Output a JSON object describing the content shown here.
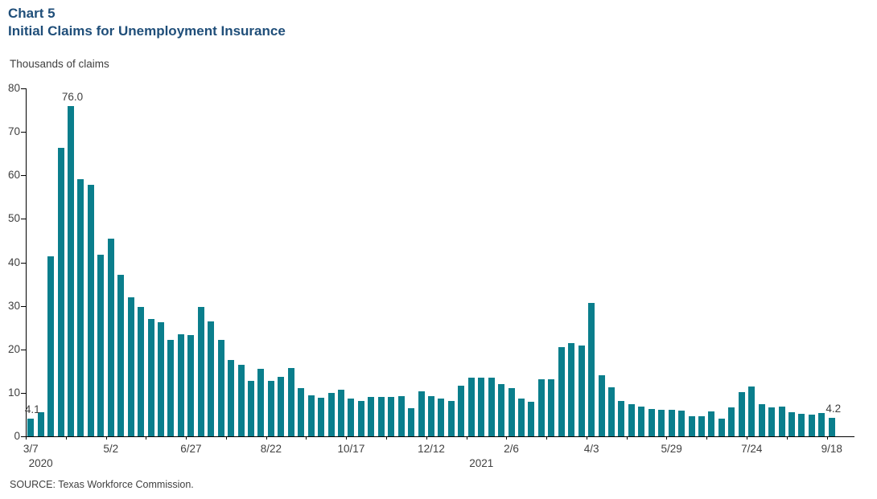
{
  "header": {
    "title_line1": "Chart 5",
    "title_line2": "Initial Claims for Unemployment Insurance"
  },
  "footer": {
    "source": "SOURCE: Texas Workforce Commission."
  },
  "chart_data": {
    "type": "bar",
    "title": "Chart 5",
    "subtitle": "Initial Claims for Unemployment Insurance",
    "ylabel": "Thousands of claims",
    "xlabel": "",
    "ylim": [
      0,
      80
    ],
    "y_ticks": [
      0,
      10,
      20,
      30,
      40,
      50,
      60,
      70,
      80
    ],
    "grid": false,
    "legend_position": "none",
    "bar_color": "#0A7E8C",
    "title_color": "#1F4E79",
    "text_color": "#404040",
    "axis_color": "#000000",
    "categories": [
      "3/7/2020",
      "3/14/2020",
      "3/21/2020",
      "3/28/2020",
      "4/4/2020",
      "4/11/2020",
      "4/18/2020",
      "4/25/2020",
      "5/2/2020",
      "5/9/2020",
      "5/16/2020",
      "5/23/2020",
      "5/30/2020",
      "6/6/2020",
      "6/13/2020",
      "6/20/2020",
      "6/27/2020",
      "7/4/2020",
      "7/11/2020",
      "7/18/2020",
      "7/25/2020",
      "8/1/2020",
      "8/8/2020",
      "8/15/2020",
      "8/22/2020",
      "8/29/2020",
      "9/5/2020",
      "9/12/2020",
      "9/19/2020",
      "9/26/2020",
      "10/3/2020",
      "10/10/2020",
      "10/17/2020",
      "10/24/2020",
      "10/31/2020",
      "11/7/2020",
      "11/14/2020",
      "11/21/2020",
      "11/28/2020",
      "12/5/2020",
      "12/12/2020",
      "12/19/2020",
      "12/26/2020",
      "1/2/2021",
      "1/9/2021",
      "1/16/2021",
      "1/23/2021",
      "1/30/2021",
      "2/6/2021",
      "2/13/2021",
      "2/20/2021",
      "2/27/2021",
      "3/6/2021",
      "3/13/2021",
      "3/20/2021",
      "3/27/2021",
      "4/3/2021",
      "4/10/2021",
      "4/17/2021",
      "4/24/2021",
      "5/1/2021",
      "5/8/2021",
      "5/15/2021",
      "5/22/2021",
      "5/29/2021",
      "6/5/2021",
      "6/12/2021",
      "6/19/2021",
      "6/26/2021",
      "7/3/2021",
      "7/10/2021",
      "7/17/2021",
      "7/24/2021",
      "7/31/2021",
      "8/7/2021",
      "8/14/2021",
      "8/21/2021",
      "8/28/2021",
      "9/4/2021",
      "9/11/2021",
      "9/18/2021"
    ],
    "values": [
      4.1,
      5.6,
      41.3,
      66.4,
      76.0,
      59.2,
      57.8,
      41.7,
      45.5,
      37.2,
      31.9,
      29.7,
      27.0,
      26.2,
      22.2,
      23.5,
      23.3,
      29.8,
      26.5,
      22.1,
      17.5,
      16.4,
      12.8,
      15.5,
      12.8,
      13.6,
      15.7,
      11.1,
      9.5,
      8.8,
      9.9,
      10.8,
      8.7,
      8.2,
      9.1,
      9.1,
      9.1,
      9.3,
      6.4,
      10.3,
      9.2,
      8.7,
      8.2,
      11.6,
      13.5,
      13.5,
      13.5,
      12.1,
      11.1,
      8.6,
      8.0,
      13.1,
      13.2,
      20.5,
      21.4,
      20.9,
      30.7,
      14.1,
      11.3,
      8.2,
      7.4,
      6.9,
      6.2,
      6.1,
      6.1,
      5.9,
      4.6,
      4.7,
      5.8,
      4.1,
      6.6,
      10.1,
      11.5,
      7.4,
      6.7,
      6.9,
      5.6,
      5.1,
      5.0,
      5.3,
      4.2
    ],
    "annotations": [
      {
        "index": 0,
        "label": "4.1"
      },
      {
        "index": 4,
        "label": "76.0"
      },
      {
        "index": 80,
        "label": "4.2"
      }
    ],
    "x_tick_labels": [
      {
        "index": 0,
        "label": "3/7"
      },
      {
        "index": 8,
        "label": "5/2"
      },
      {
        "index": 16,
        "label": "6/27"
      },
      {
        "index": 24,
        "label": "8/22"
      },
      {
        "index": 32,
        "label": "10/17"
      },
      {
        "index": 40,
        "label": "12/12"
      },
      {
        "index": 48,
        "label": "2/6"
      },
      {
        "index": 56,
        "label": "4/3"
      },
      {
        "index": 64,
        "label": "5/29"
      },
      {
        "index": 72,
        "label": "7/24"
      },
      {
        "index": 80,
        "label": "9/18"
      }
    ],
    "year_labels": [
      {
        "anchor_index": 1,
        "label": "2020"
      },
      {
        "anchor_index": 45,
        "label": "2021"
      }
    ],
    "minor_tick_every": 4
  }
}
